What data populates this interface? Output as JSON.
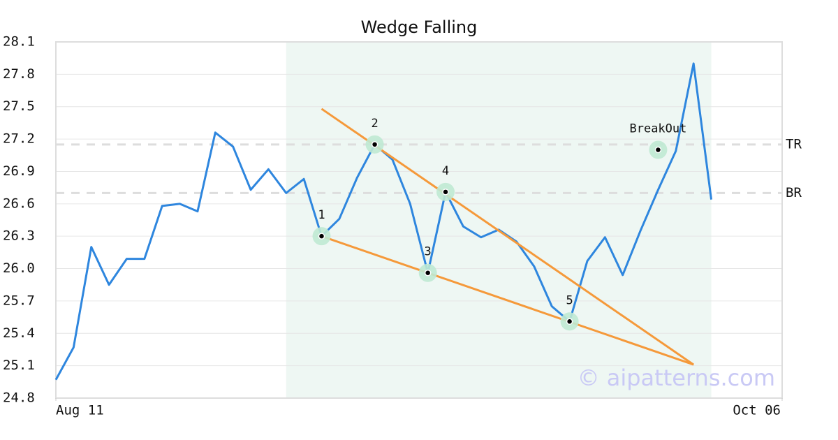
{
  "chart_data": {
    "type": "line",
    "title": "Wedge Falling",
    "x": [
      0,
      1,
      2,
      3,
      4,
      5,
      6,
      7,
      8,
      9,
      10,
      11,
      12,
      13,
      14,
      15,
      16,
      17,
      18,
      19,
      20,
      21,
      22,
      23,
      24,
      25,
      26,
      27,
      28,
      29,
      30,
      31,
      32,
      33,
      34,
      35,
      36,
      37
    ],
    "series": [
      {
        "color": "#2e86de",
        "values": [
          24.97,
          25.27,
          26.2,
          25.85,
          26.09,
          26.09,
          26.58,
          26.6,
          26.53,
          27.26,
          27.13,
          26.73,
          26.92,
          26.7,
          26.83,
          26.3,
          26.46,
          26.84,
          27.15,
          27.01,
          26.6,
          25.96,
          26.71,
          26.39,
          26.29,
          26.36,
          26.25,
          26.02,
          25.65,
          25.51,
          26.07,
          26.29,
          25.94,
          26.35,
          26.73,
          27.09,
          27.9,
          26.64
        ]
      }
    ],
    "xlim": [
      0,
      41
    ],
    "xticks": [
      {
        "value": 0,
        "label": "Aug 11"
      },
      {
        "value": 41,
        "label": "Oct 06"
      }
    ],
    "ylim": [
      24.8,
      28.1
    ],
    "yticks": [
      24.8,
      25.1,
      25.4,
      25.7,
      {
        "value": 26,
        "label": "26.0"
      },
      26.3,
      26.6,
      26.9,
      27.2,
      27.5,
      27.8,
      28.1
    ],
    "grid": true,
    "highlight": [
      13,
      37
    ],
    "highlight_color": "#eef7f3",
    "points": [
      {
        "label": "1",
        "x": 15,
        "y": 26.3
      },
      {
        "label": "2",
        "x": 18,
        "y": 27.15
      },
      {
        "label": "3",
        "x": 21,
        "y": 25.96
      },
      {
        "label": "4",
        "x": 22,
        "y": 26.71
      },
      {
        "label": "5",
        "x": 29,
        "y": 25.51
      },
      {
        "label": "BreakOut",
        "x": 34,
        "y": 27.1
      }
    ],
    "trendlines": [
      {
        "color": "#f5993a",
        "x": [
          15,
          36
        ],
        "y": [
          27.48,
          25.11
        ]
      },
      {
        "color": "#f5993a",
        "x": [
          15,
          36
        ],
        "y": [
          26.3,
          25.11
        ]
      }
    ],
    "levels": [
      {
        "label": "TR",
        "value": 27.15
      },
      {
        "label": "BR",
        "value": 26.7
      }
    ],
    "watermark": "© aipatterns.com"
  }
}
